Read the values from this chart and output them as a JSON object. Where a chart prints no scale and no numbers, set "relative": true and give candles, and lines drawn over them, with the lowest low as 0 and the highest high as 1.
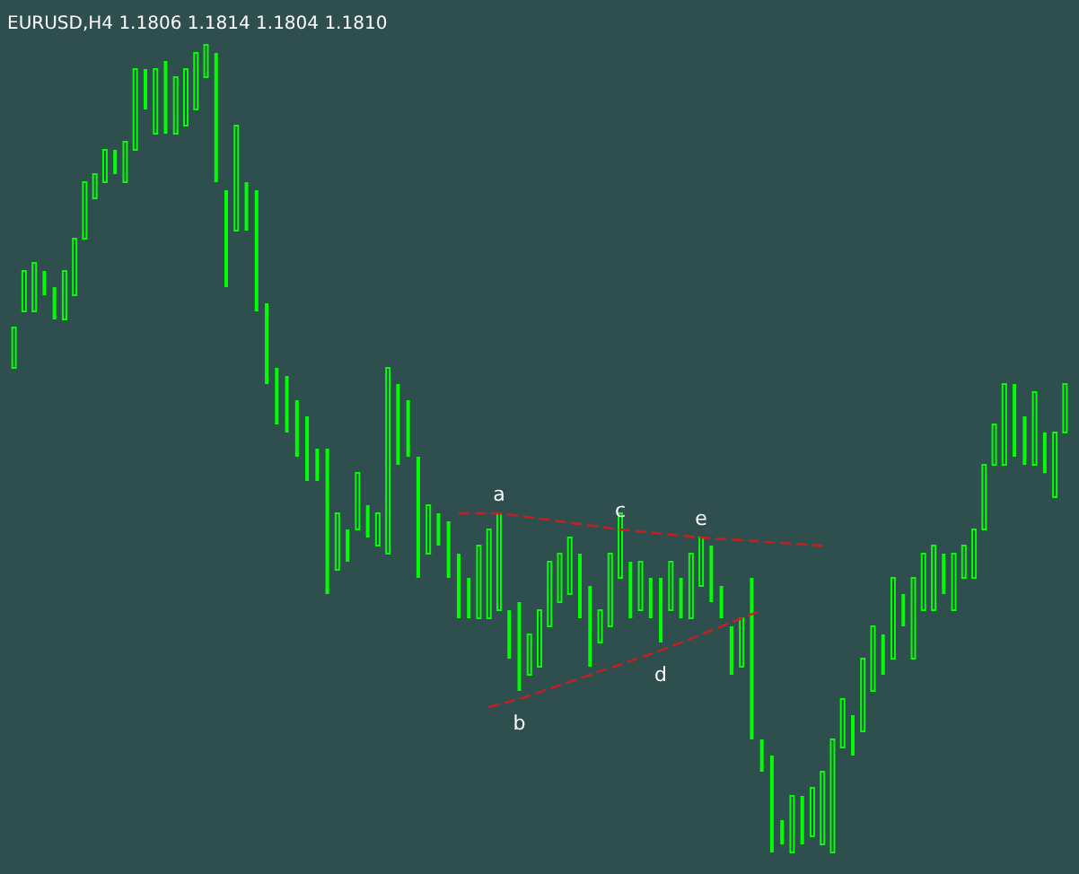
{
  "chart_data": {
    "type": "candlestick",
    "title": "EURUSD,H4  1.1806 1.1814 1.1804 1.1810",
    "relative": true,
    "color": "#00ff00",
    "categories": [
      null,
      null,
      null,
      null,
      null,
      null,
      null,
      null,
      null,
      null,
      null,
      null,
      null,
      null,
      null,
      null,
      null,
      null,
      null,
      null,
      null,
      null,
      null,
      null,
      null,
      null,
      null,
      null,
      null,
      null,
      null,
      null,
      null,
      null,
      null,
      null,
      null,
      null,
      null,
      null,
      null,
      null,
      null,
      null,
      null,
      null,
      null,
      null,
      null,
      null,
      null,
      null,
      null,
      null,
      null,
      null,
      null,
      null,
      null,
      null,
      null,
      null,
      null,
      null,
      null,
      null,
      null,
      null,
      null,
      null,
      null,
      null,
      null,
      null,
      null,
      null,
      null,
      null,
      null,
      null,
      null,
      null,
      null,
      null,
      null,
      null,
      null,
      null,
      null,
      null,
      null,
      null,
      null,
      null,
      null,
      null,
      null,
      null,
      null,
      null,
      null,
      null,
      null,
      null,
      null
    ],
    "ohlc": [
      [
        0.6,
        0.65,
        0.6,
        0.65
      ],
      [
        0.67,
        0.72,
        0.67,
        0.72
      ],
      [
        0.67,
        0.73,
        0.67,
        0.73
      ],
      [
        0.72,
        0.72,
        0.69,
        0.69
      ],
      [
        0.7,
        0.7,
        0.66,
        0.66
      ],
      [
        0.66,
        0.72,
        0.66,
        0.72
      ],
      [
        0.69,
        0.76,
        0.69,
        0.76
      ],
      [
        0.76,
        0.83,
        0.76,
        0.83
      ],
      [
        0.81,
        0.84,
        0.81,
        0.84
      ],
      [
        0.83,
        0.87,
        0.83,
        0.87
      ],
      [
        0.87,
        0.87,
        0.84,
        0.84
      ],
      [
        0.83,
        0.88,
        0.83,
        0.88
      ],
      [
        0.87,
        0.97,
        0.87,
        0.97
      ],
      [
        0.97,
        0.97,
        0.92,
        0.92
      ],
      [
        0.89,
        0.97,
        0.89,
        0.97
      ],
      [
        0.98,
        0.98,
        0.89,
        0.89
      ],
      [
        0.89,
        0.96,
        0.89,
        0.96
      ],
      [
        0.9,
        0.97,
        0.9,
        0.97
      ],
      [
        0.92,
        0.99,
        0.92,
        0.99
      ],
      [
        0.96,
        1,
        0.96,
        1
      ],
      [
        0.99,
        0.99,
        0.83,
        0.83
      ],
      [
        0.82,
        0.82,
        0.7,
        0.7
      ],
      [
        0.77,
        0.9,
        0.77,
        0.9
      ],
      [
        0.83,
        0.83,
        0.77,
        0.77
      ],
      [
        0.82,
        0.82,
        0.67,
        0.67
      ],
      [
        0.68,
        0.68,
        0.58,
        0.58
      ],
      [
        0.6,
        0.6,
        0.53,
        0.53
      ],
      [
        0.59,
        0.59,
        0.52,
        0.52
      ],
      [
        0.56,
        0.56,
        0.49,
        0.49
      ],
      [
        0.54,
        0.54,
        0.46,
        0.46
      ],
      [
        0.5,
        0.5,
        0.46,
        0.46
      ],
      [
        0.5,
        0.5,
        0.32,
        0.32
      ],
      [
        0.35,
        0.42,
        0.35,
        0.42
      ],
      [
        0.4,
        0.4,
        0.36,
        0.36
      ],
      [
        0.4,
        0.47,
        0.4,
        0.47
      ],
      [
        0.43,
        0.43,
        0.39,
        0.39
      ],
      [
        0.38,
        0.42,
        0.38,
        0.42
      ],
      [
        0.37,
        0.6,
        0.37,
        0.6
      ],
      [
        0.58,
        0.58,
        0.48,
        0.48
      ],
      [
        0.56,
        0.56,
        0.49,
        0.49
      ],
      [
        0.49,
        0.49,
        0.34,
        0.34
      ],
      [
        0.37,
        0.43,
        0.37,
        0.43
      ],
      [
        0.42,
        0.42,
        0.38,
        0.38
      ],
      [
        0.41,
        0.41,
        0.34,
        0.34
      ],
      [
        0.37,
        0.37,
        0.29,
        0.29
      ],
      [
        0.34,
        0.34,
        0.29,
        0.29
      ],
      [
        0.29,
        0.38,
        0.29,
        0.38
      ],
      [
        0.29,
        0.4,
        0.29,
        0.4
      ],
      [
        0.3,
        0.42,
        0.3,
        0.42
      ],
      [
        0.3,
        0.3,
        0.24,
        0.24
      ],
      [
        0.31,
        0.31,
        0.2,
        0.2
      ],
      [
        0.22,
        0.27,
        0.22,
        0.27
      ],
      [
        0.23,
        0.3,
        0.23,
        0.3
      ],
      [
        0.28,
        0.36,
        0.28,
        0.36
      ],
      [
        0.31,
        0.37,
        0.31,
        0.37
      ],
      [
        0.32,
        0.39,
        0.32,
        0.39
      ],
      [
        0.37,
        0.37,
        0.29,
        0.29
      ],
      [
        0.33,
        0.33,
        0.23,
        0.23
      ],
      [
        0.26,
        0.3,
        0.26,
        0.3
      ],
      [
        0.28,
        0.37,
        0.28,
        0.37
      ],
      [
        0.34,
        0.42,
        0.34,
        0.42
      ],
      [
        0.36,
        0.36,
        0.29,
        0.29
      ],
      [
        0.3,
        0.36,
        0.3,
        0.36
      ],
      [
        0.34,
        0.34,
        0.29,
        0.29
      ],
      [
        0.34,
        0.34,
        0.26,
        0.26
      ],
      [
        0.3,
        0.36,
        0.3,
        0.36
      ],
      [
        0.34,
        0.34,
        0.29,
        0.29
      ],
      [
        0.29,
        0.37,
        0.29,
        0.37
      ],
      [
        0.33,
        0.39,
        0.33,
        0.39
      ],
      [
        0.38,
        0.38,
        0.31,
        0.31
      ],
      [
        0.33,
        0.33,
        0.29,
        0.29
      ],
      [
        0.28,
        0.28,
        0.22,
        0.22
      ],
      [
        0.23,
        0.29,
        0.23,
        0.29
      ],
      [
        0.34,
        0.34,
        0.14,
        0.14
      ],
      [
        0.14,
        0.14,
        0.1,
        0.1
      ],
      [
        0.12,
        0.12,
        0,
        0
      ],
      [
        0.04,
        0.04,
        0.01,
        0.01
      ],
      [
        0,
        0.07,
        0,
        0.07
      ],
      [
        0.07,
        0.07,
        0.01,
        0.01
      ],
      [
        0.02,
        0.08,
        0.02,
        0.08
      ],
      [
        0.01,
        0.1,
        0.01,
        0.1
      ],
      [
        0.0,
        0.14,
        0.0,
        0.14
      ],
      [
        0.13,
        0.19,
        0.13,
        0.19
      ],
      [
        0.17,
        0.17,
        0.12,
        0.12
      ],
      [
        0.15,
        0.24,
        0.15,
        0.24
      ],
      [
        0.2,
        0.28,
        0.2,
        0.28
      ],
      [
        0.27,
        0.27,
        0.22,
        0.22
      ],
      [
        0.24,
        0.34,
        0.24,
        0.34
      ],
      [
        0.32,
        0.32,
        0.28,
        0.28
      ],
      [
        0.24,
        0.34,
        0.24,
        0.34
      ],
      [
        0.3,
        0.37,
        0.3,
        0.37
      ],
      [
        0.3,
        0.38,
        0.3,
        0.38
      ],
      [
        0.37,
        0.37,
        0.32,
        0.32
      ],
      [
        0.3,
        0.37,
        0.3,
        0.37
      ],
      [
        0.34,
        0.38,
        0.34,
        0.38
      ],
      [
        0.34,
        0.4,
        0.34,
        0.4
      ],
      [
        0.4,
        0.48,
        0.4,
        0.48
      ],
      [
        0.48,
        0.53,
        0.48,
        0.53
      ],
      [
        0.48,
        0.58,
        0.48,
        0.58
      ],
      [
        0.58,
        0.58,
        0.49,
        0.49
      ],
      [
        0.54,
        0.54,
        0.48,
        0.48
      ],
      [
        0.48,
        0.57,
        0.48,
        0.57
      ],
      [
        0.52,
        0.52,
        0.47,
        0.47
      ],
      [
        0.44,
        0.52,
        0.44,
        0.52
      ],
      [
        0.52,
        0.58,
        0.52,
        0.58
      ]
    ],
    "series": [
      {
        "type": "line",
        "color": "#c81e1e",
        "line_style": "dashed",
        "values": [
          null,
          null,
          null,
          null,
          null,
          null,
          null,
          null,
          null,
          null,
          null,
          null,
          null,
          null,
          null,
          null,
          null,
          null,
          null,
          null,
          null,
          null,
          null,
          null,
          null,
          null,
          null,
          null,
          null,
          null,
          null,
          null,
          null,
          null,
          null,
          null,
          null,
          null,
          null,
          null,
          null,
          null,
          null,
          null,
          0.42,
          null,
          null,
          null,
          0.42,
          null,
          null,
          null,
          null,
          null,
          null,
          null,
          null,
          null,
          null,
          null,
          0.4,
          null,
          null,
          null,
          null,
          null,
          null,
          null,
          0.39,
          null,
          null,
          null,
          null,
          null,
          null,
          null,
          null,
          null,
          null,
          null,
          0.38,
          null,
          null,
          null,
          null,
          null,
          null,
          null,
          null,
          null,
          null,
          null,
          null,
          null,
          null,
          null,
          null,
          null,
          null,
          null,
          null,
          null,
          null,
          null,
          null
        ]
      },
      {
        "type": "line",
        "color": "#c81e1e",
        "line_style": "dashed",
        "values": [
          null,
          null,
          null,
          null,
          null,
          null,
          null,
          null,
          null,
          null,
          null,
          null,
          null,
          null,
          null,
          null,
          null,
          null,
          null,
          null,
          null,
          null,
          null,
          null,
          null,
          null,
          null,
          null,
          null,
          null,
          null,
          null,
          null,
          null,
          null,
          null,
          null,
          null,
          null,
          null,
          null,
          null,
          null,
          null,
          null,
          null,
          null,
          0.18,
          null,
          null,
          0.19,
          null,
          null,
          null,
          null,
          null,
          null,
          null,
          null,
          null,
          null,
          null,
          null,
          null,
          0.25,
          null,
          null,
          null,
          null,
          null,
          null,
          null,
          null,
          null,
          0.3,
          null,
          null,
          null,
          null,
          null,
          null,
          null,
          null,
          null,
          null,
          null,
          null,
          null,
          null,
          null,
          null,
          null,
          null,
          null,
          null,
          null,
          null,
          null,
          null,
          null,
          null,
          null,
          null,
          null,
          null
        ]
      }
    ],
    "annotations": [
      "a",
      "b",
      "c",
      "d",
      "e"
    ]
  }
}
